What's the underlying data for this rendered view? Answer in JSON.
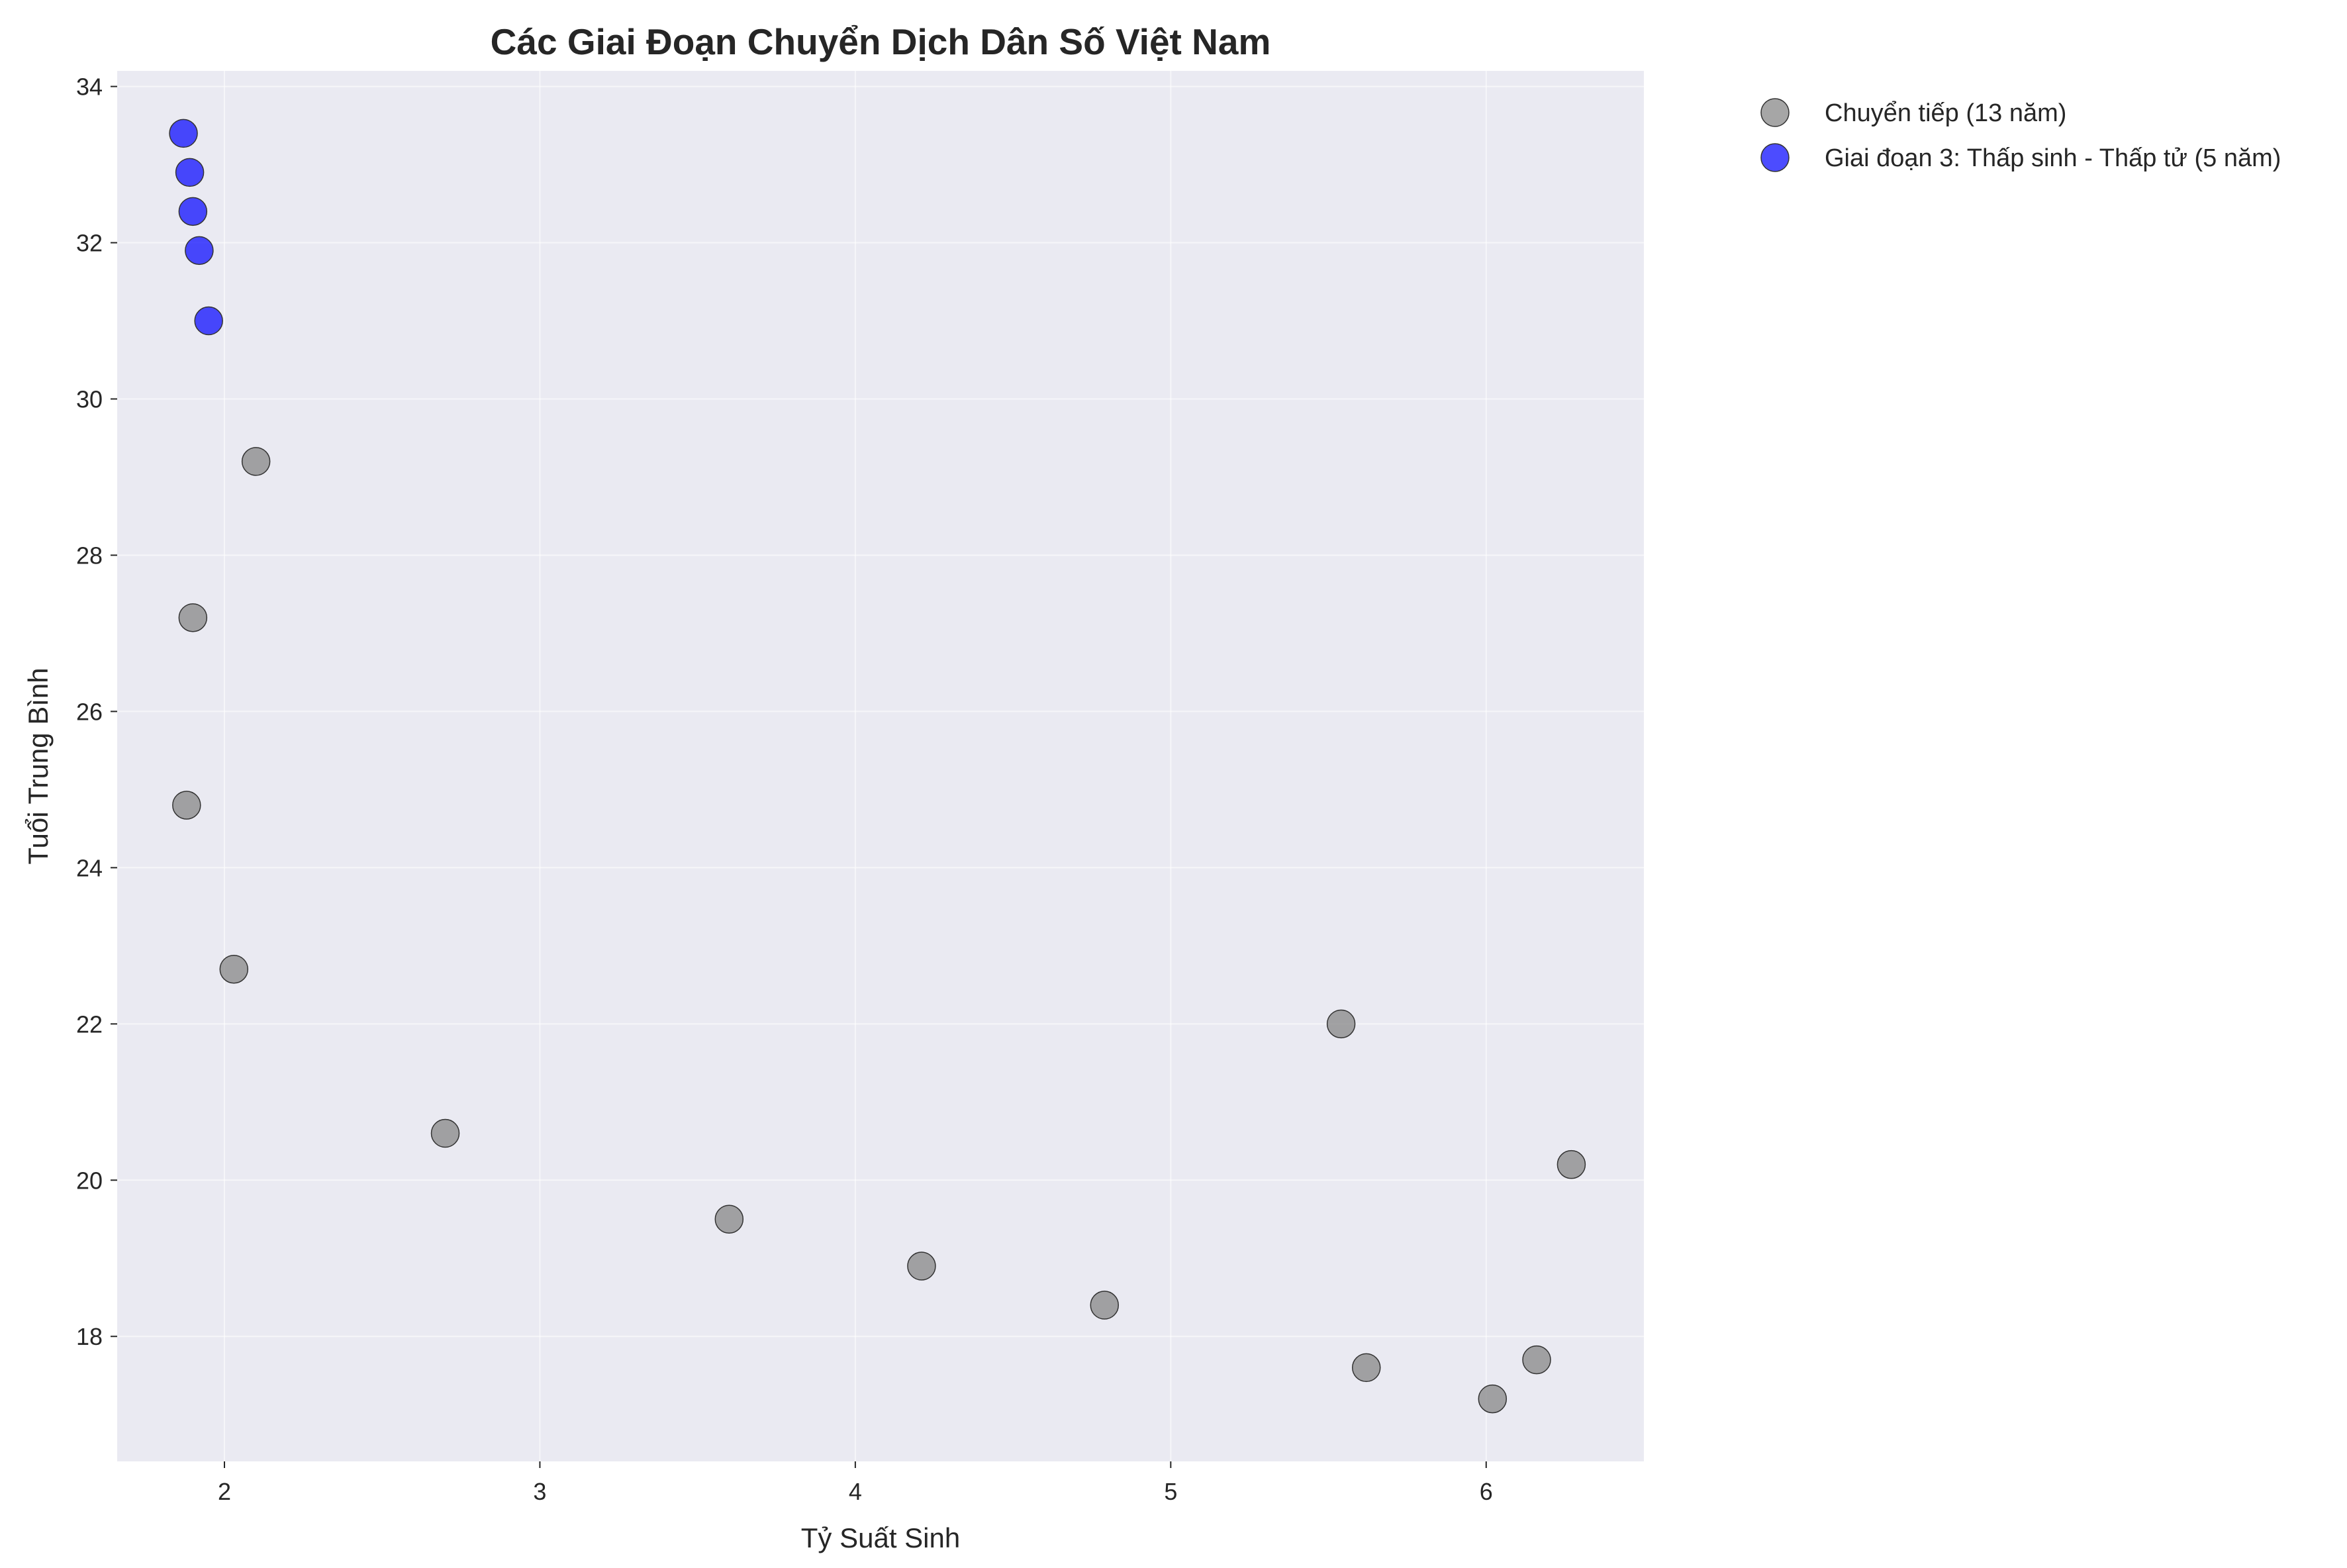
{
  "chart_data": {
    "type": "scatter",
    "title": "Các Giai Đoạn Chuyển Dịch Dân Số Việt Nam",
    "xlabel": "Tỷ Suất Sinh",
    "ylabel": "Tuổi Trung Bình",
    "xlim": [
      1.66,
      6.5
    ],
    "ylim": [
      16.4,
      34.2
    ],
    "x_ticks": [
      2,
      3,
      4,
      5,
      6
    ],
    "y_ticks": [
      18,
      20,
      22,
      24,
      26,
      28,
      30,
      32,
      34
    ],
    "grid": true,
    "legend_position": "outside-top-right",
    "plot_background": "#eaeaf2",
    "series": [
      {
        "name": "Chuyển tiếp (13 năm)",
        "color": "#808080",
        "points": [
          {
            "x": 6.27,
            "y": 20.2
          },
          {
            "x": 6.16,
            "y": 17.7
          },
          {
            "x": 6.02,
            "y": 17.2
          },
          {
            "x": 5.62,
            "y": 17.6
          },
          {
            "x": 5.54,
            "y": 22.0
          },
          {
            "x": 4.79,
            "y": 18.4
          },
          {
            "x": 4.21,
            "y": 18.9
          },
          {
            "x": 3.6,
            "y": 19.5
          },
          {
            "x": 2.7,
            "y": 20.6
          },
          {
            "x": 2.03,
            "y": 22.7
          },
          {
            "x": 1.88,
            "y": 24.8
          },
          {
            "x": 1.9,
            "y": 27.2
          },
          {
            "x": 2.1,
            "y": 29.2
          }
        ]
      },
      {
        "name": "Giai đoạn 3: Thấp sinh - Thấp tử (5 năm)",
        "color": "#0000ff",
        "points": [
          {
            "x": 1.95,
            "y": 31.0
          },
          {
            "x": 1.92,
            "y": 31.9
          },
          {
            "x": 1.9,
            "y": 32.4
          },
          {
            "x": 1.89,
            "y": 32.9
          },
          {
            "x": 1.87,
            "y": 33.4
          }
        ]
      }
    ]
  }
}
